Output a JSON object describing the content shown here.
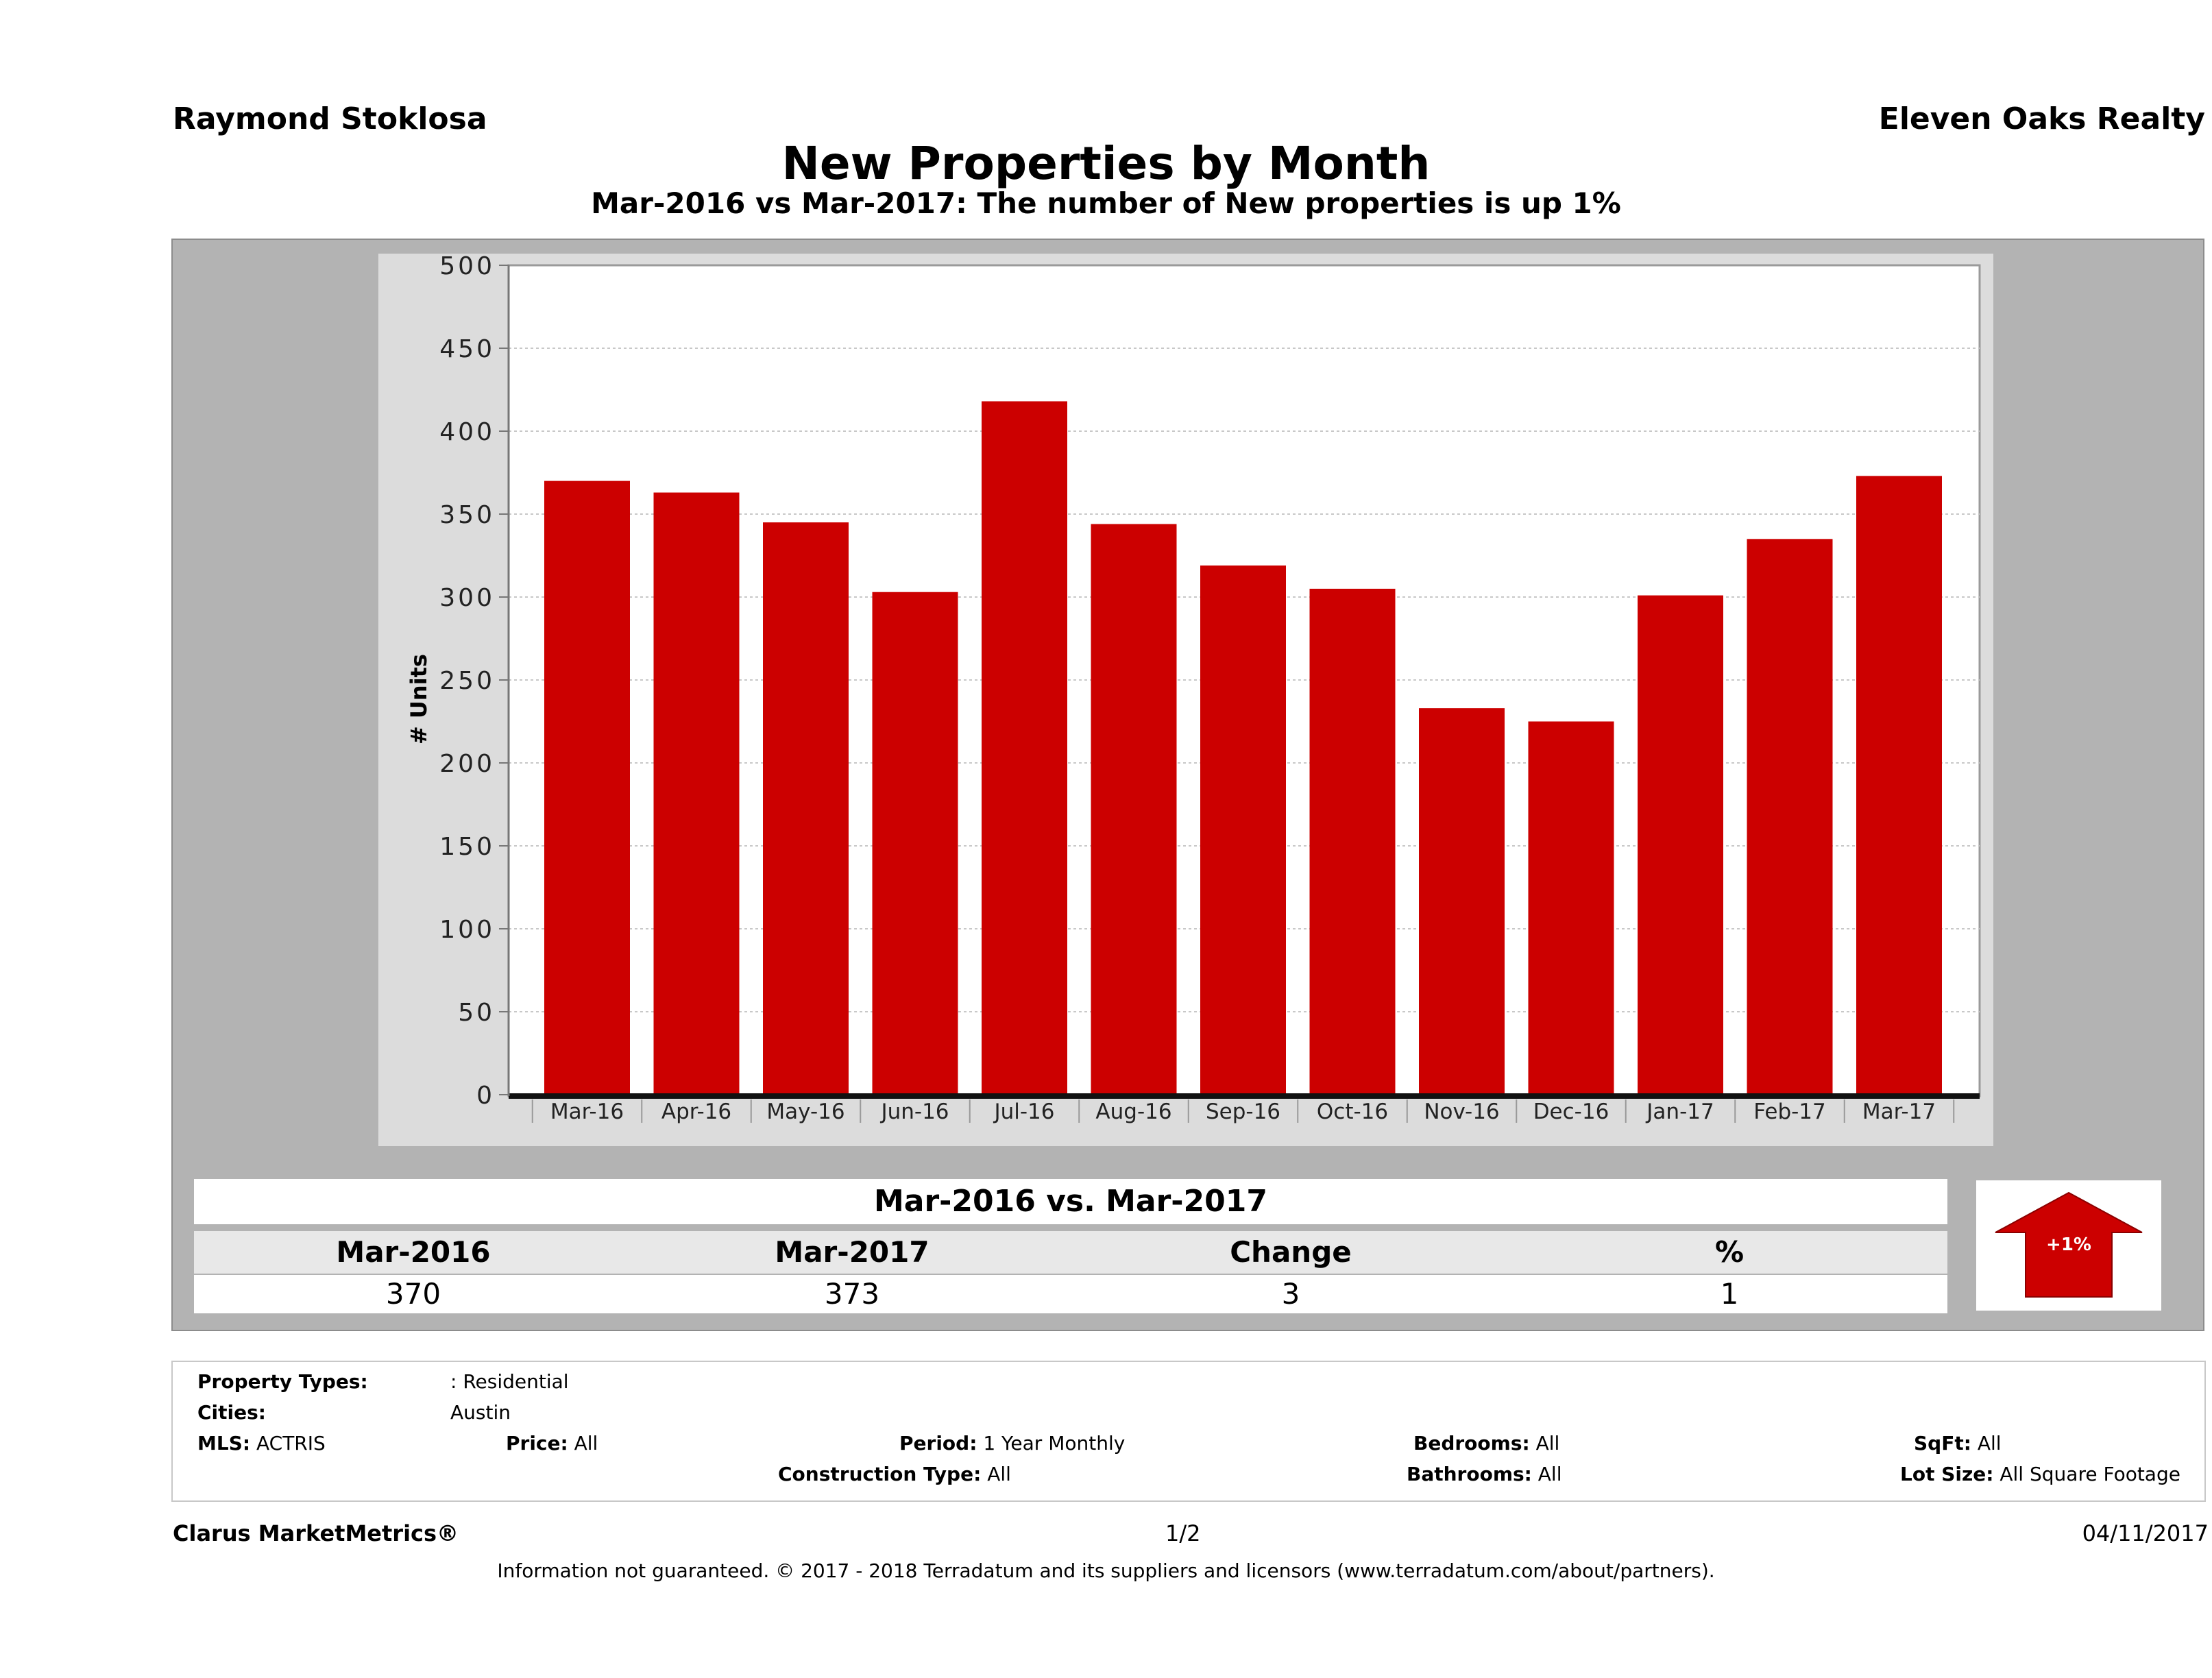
{
  "header": {
    "agent_name": "Raymond Stoklosa",
    "brokerage": "Eleven Oaks Realty",
    "title": "New Properties by Month",
    "subtitle": "Mar-2016 vs Mar-2017: The number of New  properties is up 1%"
  },
  "chart_data": {
    "type": "bar",
    "title": "New Properties by Month",
    "xlabel": "",
    "ylabel": "# Units",
    "categories": [
      "Mar-16",
      "Apr-16",
      "May-16",
      "Jun-16",
      "Jul-16",
      "Aug-16",
      "Sep-16",
      "Oct-16",
      "Nov-16",
      "Dec-16",
      "Jan-17",
      "Feb-17",
      "Mar-17"
    ],
    "values": [
      370,
      363,
      345,
      303,
      418,
      344,
      319,
      305,
      233,
      225,
      301,
      335,
      373
    ],
    "ylim": [
      0,
      500
    ],
    "yticks": [
      0,
      50,
      100,
      150,
      200,
      250,
      300,
      350,
      400,
      450,
      500
    ],
    "grid": true,
    "bar_color": "#cc0000"
  },
  "summary": {
    "title": "Mar-2016 vs. Mar-2017",
    "headers": [
      "Mar-2016",
      "Mar-2017",
      "Change",
      "%"
    ],
    "values": [
      "370",
      "373",
      "3",
      "1"
    ],
    "badge": "+1%",
    "badge_color": "#cc0000"
  },
  "filters": {
    "property_types_label": "Property Types:",
    "property_types_value": ": Residential",
    "cities_label": "Cities:",
    "cities_value": "Austin",
    "mls_label": "MLS:",
    "mls_value": "ACTRIS",
    "price_label": "Price:",
    "price_value": "All",
    "period_label": "Period:",
    "period_value": "1 Year Monthly",
    "construction_label": "Construction Type:",
    "construction_value": "All",
    "bedrooms_label": "Bedrooms:",
    "bedrooms_value": "All",
    "bathrooms_label": "Bathrooms:",
    "bathrooms_value": "All",
    "sqft_label": "SqFt:",
    "sqft_value": "All",
    "lotsize_label": "Lot Size:",
    "lotsize_value": "All Square Footage"
  },
  "footer": {
    "product": "Clarus MarketMetrics®",
    "page": "1/2",
    "date": "04/11/2017",
    "disclaimer": "Information not guaranteed. © 2017 - 2018 Terradatum and its suppliers and licensors (www.terradatum.com/about/partners)."
  }
}
